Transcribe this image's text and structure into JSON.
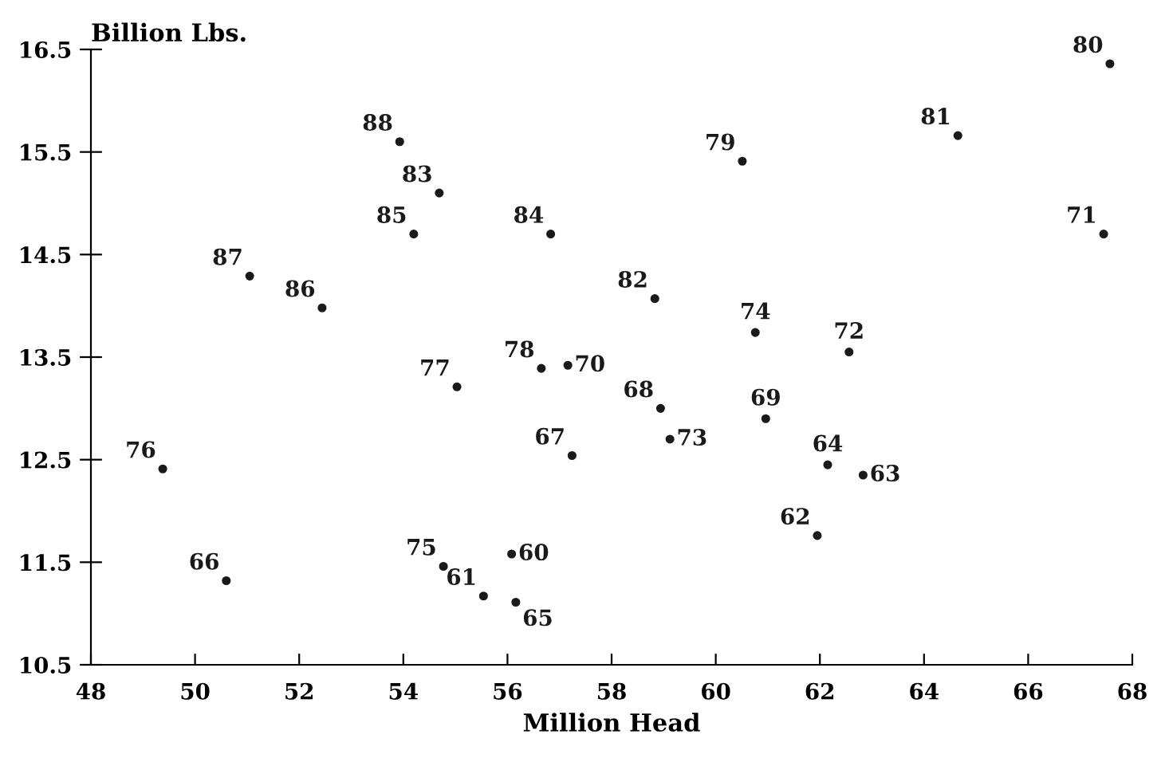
{
  "chart_data": {
    "type": "scatter",
    "ylabel": "Billion Lbs.",
    "xlabel": "Million Head",
    "x": [
      56.08,
      55.54,
      61.95,
      62.83,
      62.15,
      56.16,
      50.6,
      57.24,
      58.94,
      60.96,
      57.16,
      67.45,
      62.56,
      59.12,
      60.76,
      54.77,
      49.38,
      55.03,
      56.65,
      60.51,
      67.57,
      64.65,
      58.83,
      54.69,
      56.83,
      54.2,
      52.44,
      51.05,
      53.93
    ],
    "values": [
      11.58,
      11.17,
      11.76,
      12.35,
      12.45,
      11.11,
      11.32,
      12.54,
      13.0,
      12.9,
      13.42,
      14.7,
      13.55,
      12.7,
      13.74,
      11.46,
      12.41,
      13.21,
      13.39,
      15.41,
      16.36,
      15.66,
      14.07,
      15.1,
      14.7,
      14.7,
      13.98,
      14.29,
      15.6
    ],
    "annotations": [
      {
        "text": "60",
        "x": 56.08,
        "y": 11.58
      },
      {
        "text": "61",
        "x": 55.54,
        "y": 11.17
      },
      {
        "text": "62",
        "x": 61.95,
        "y": 11.76
      },
      {
        "text": "63",
        "x": 62.83,
        "y": 12.35
      },
      {
        "text": "64",
        "x": 62.15,
        "y": 12.45
      },
      {
        "text": "65",
        "x": 56.16,
        "y": 11.11
      },
      {
        "text": "66",
        "x": 50.6,
        "y": 11.32
      },
      {
        "text": "67",
        "x": 57.24,
        "y": 12.54
      },
      {
        "text": "68",
        "x": 58.94,
        "y": 13.0
      },
      {
        "text": "69",
        "x": 60.96,
        "y": 12.9
      },
      {
        "text": "70",
        "x": 57.16,
        "y": 13.42
      },
      {
        "text": "71",
        "x": 67.45,
        "y": 14.7
      },
      {
        "text": "72",
        "x": 62.56,
        "y": 13.55
      },
      {
        "text": "73",
        "x": 59.12,
        "y": 12.7
      },
      {
        "text": "74",
        "x": 60.76,
        "y": 13.74
      },
      {
        "text": "75",
        "x": 54.77,
        "y": 11.46
      },
      {
        "text": "76",
        "x": 49.38,
        "y": 12.41
      },
      {
        "text": "77",
        "x": 55.03,
        "y": 13.21
      },
      {
        "text": "78",
        "x": 56.65,
        "y": 13.39
      },
      {
        "text": "79",
        "x": 60.51,
        "y": 15.41
      },
      {
        "text": "80",
        "x": 67.57,
        "y": 16.36
      },
      {
        "text": "81",
        "x": 64.65,
        "y": 15.66
      },
      {
        "text": "82",
        "x": 58.83,
        "y": 14.07
      },
      {
        "text": "83",
        "x": 54.69,
        "y": 15.1
      },
      {
        "text": "84",
        "x": 56.83,
        "y": 14.7
      },
      {
        "text": "85",
        "x": 54.2,
        "y": 14.7
      },
      {
        "text": "86",
        "x": 52.44,
        "y": 13.98
      },
      {
        "text": "87",
        "x": 51.05,
        "y": 14.29
      },
      {
        "text": "88",
        "x": 53.93,
        "y": 15.6
      }
    ],
    "color": "#1a1a1a",
    "marker": "circle",
    "xlim": [
      48,
      68
    ],
    "xticks": [
      48,
      50,
      52,
      54,
      56,
      58,
      60,
      62,
      64,
      66,
      68
    ],
    "ylim": [
      10.5,
      16.5
    ],
    "yticks": [
      10.5,
      11.5,
      12.5,
      13.5,
      14.5,
      15.5,
      16.5
    ],
    "grid": false,
    "legend": false
  }
}
